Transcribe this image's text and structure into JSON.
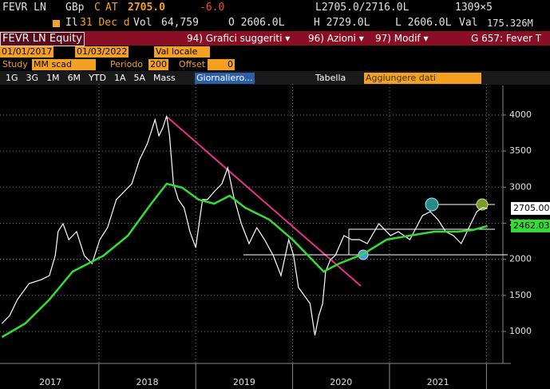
{
  "header": {
    "ticker": "FEVR LN",
    "currency": "GBp",
    "flag": "C",
    "at": "AT",
    "last": "2705.0",
    "change": "-6.0",
    "bidask": "L2705.0/2716.0L",
    "size": "1309×5",
    "il": "Il",
    "date": "31 Dec d",
    "vol_label": "Vol",
    "vol": "64,759",
    "open": "O 2606.0L",
    "high": "H 2729.0L",
    "low": "L 2606.0L",
    "val_label": "Val",
    "val": "175.326M"
  },
  "menubar": {
    "security": "FEVR LN Equity",
    "items": [
      "94) Grafici suggeriti ▾",
      "96) Azioni ▾",
      "97) Modif ▾"
    ],
    "right": "G 657: Fever T"
  },
  "settings": {
    "start": "01/01/2017",
    "end": "01/03/2022",
    "currency": "Val locale",
    "study": "Study",
    "study_value": "MM scad",
    "period_label": "Periodo",
    "period": "200",
    "offset_label": "Offset",
    "offset": "0"
  },
  "toolbar": {
    "ranges": [
      "1G",
      "3G",
      "1M",
      "6M",
      "YTD",
      "1A",
      "5A",
      "Mass"
    ],
    "frequency": "Giornaliero...",
    "table": "Tabella",
    "add": "Aggiungere dati"
  },
  "chart_data": {
    "type": "line",
    "xlim": [
      2016.98,
      2022.17
    ],
    "ylim": [
      557,
      4210
    ],
    "yticks": [
      1000,
      1500,
      2000,
      2500,
      3000,
      3500,
      4000
    ],
    "xticks": [
      {
        "value": 2017.5,
        "label": "2017"
      },
      {
        "value": 2018.5,
        "label": "2018"
      },
      {
        "value": 2019.5,
        "label": "2019"
      },
      {
        "value": 2020.5,
        "label": "2020"
      },
      {
        "value": 2021.5,
        "label": "2021"
      }
    ],
    "xgrid_lines": [
      2018,
      2019,
      2020,
      2021,
      2022
    ],
    "grid": true,
    "series": [
      {
        "color": "#ffffff",
        "last_label": "2705.00",
        "x": [
          2017.0,
          2017.08,
          2017.16,
          2017.28,
          2017.41,
          2017.49,
          2017.55,
          2017.58,
          2017.63,
          2017.69,
          2017.77,
          2017.85,
          2017.93,
          2018.01,
          2018.09,
          2018.18,
          2018.26,
          2018.34,
          2018.42,
          2018.5,
          2018.54,
          2018.58,
          2018.62,
          2018.66,
          2018.7,
          2018.73,
          2018.77,
          2018.82,
          2018.88,
          2018.94,
          2019.0,
          2019.07,
          2019.12,
          2019.19,
          2019.27,
          2019.33,
          2019.39,
          2019.47,
          2019.55,
          2019.63,
          2019.71,
          2019.8,
          2019.88,
          2019.96,
          2020.01,
          2020.06,
          2020.12,
          2020.18,
          2020.23,
          2020.27,
          2020.31,
          2020.34,
          2020.39,
          2020.44,
          2020.53,
          2020.61,
          2020.69,
          2020.77,
          2020.89,
          2021.01,
          2021.09,
          2021.21,
          2021.34,
          2021.42,
          2021.5,
          2021.58,
          2021.66,
          2021.74,
          2021.82,
          2021.9,
          2021.96,
          2022.01
        ],
        "values": [
          1111,
          1221,
          1443,
          1664,
          1720,
          1775,
          2052,
          2384,
          2494,
          2273,
          2384,
          2052,
          1941,
          2273,
          2439,
          2827,
          2937,
          3048,
          3380,
          3601,
          3767,
          3934,
          3712,
          3823,
          3989,
          3712,
          3048,
          2827,
          2716,
          2384,
          2162,
          2827,
          2827,
          2937,
          3048,
          3269,
          2882,
          2494,
          2218,
          2439,
          2273,
          2052,
          1775,
          2273,
          2052,
          1609,
          1498,
          1387,
          945,
          1221,
          1387,
          1830,
          1996,
          2052,
          2328,
          2273,
          2273,
          2218,
          2494,
          2328,
          2384,
          2273,
          2605,
          2660,
          2550,
          2384,
          2328,
          2218,
          2439,
          2660,
          2716,
          2705
        ]
      },
      {
        "color": "#33dd33",
        "last_label": "2462.03",
        "x": [
          2017.0,
          2017.24,
          2017.49,
          2017.73,
          2017.89,
          2018.05,
          2018.3,
          2018.54,
          2018.7,
          2018.86,
          2019.03,
          2019.19,
          2019.35,
          2019.51,
          2019.76,
          2020.0,
          2020.2,
          2020.32,
          2020.48,
          2020.73,
          2020.97,
          2021.21,
          2021.46,
          2021.7,
          2021.86,
          2022.01
        ],
        "values": [
          922,
          1111,
          1443,
          1830,
          1941,
          2052,
          2328,
          2771,
          3048,
          2993,
          2827,
          2771,
          2882,
          2716,
          2550,
          2273,
          1996,
          1830,
          1941,
          2074,
          2273,
          2328,
          2384,
          2384,
          2406,
          2462.03
        ]
      }
    ]
  }
}
